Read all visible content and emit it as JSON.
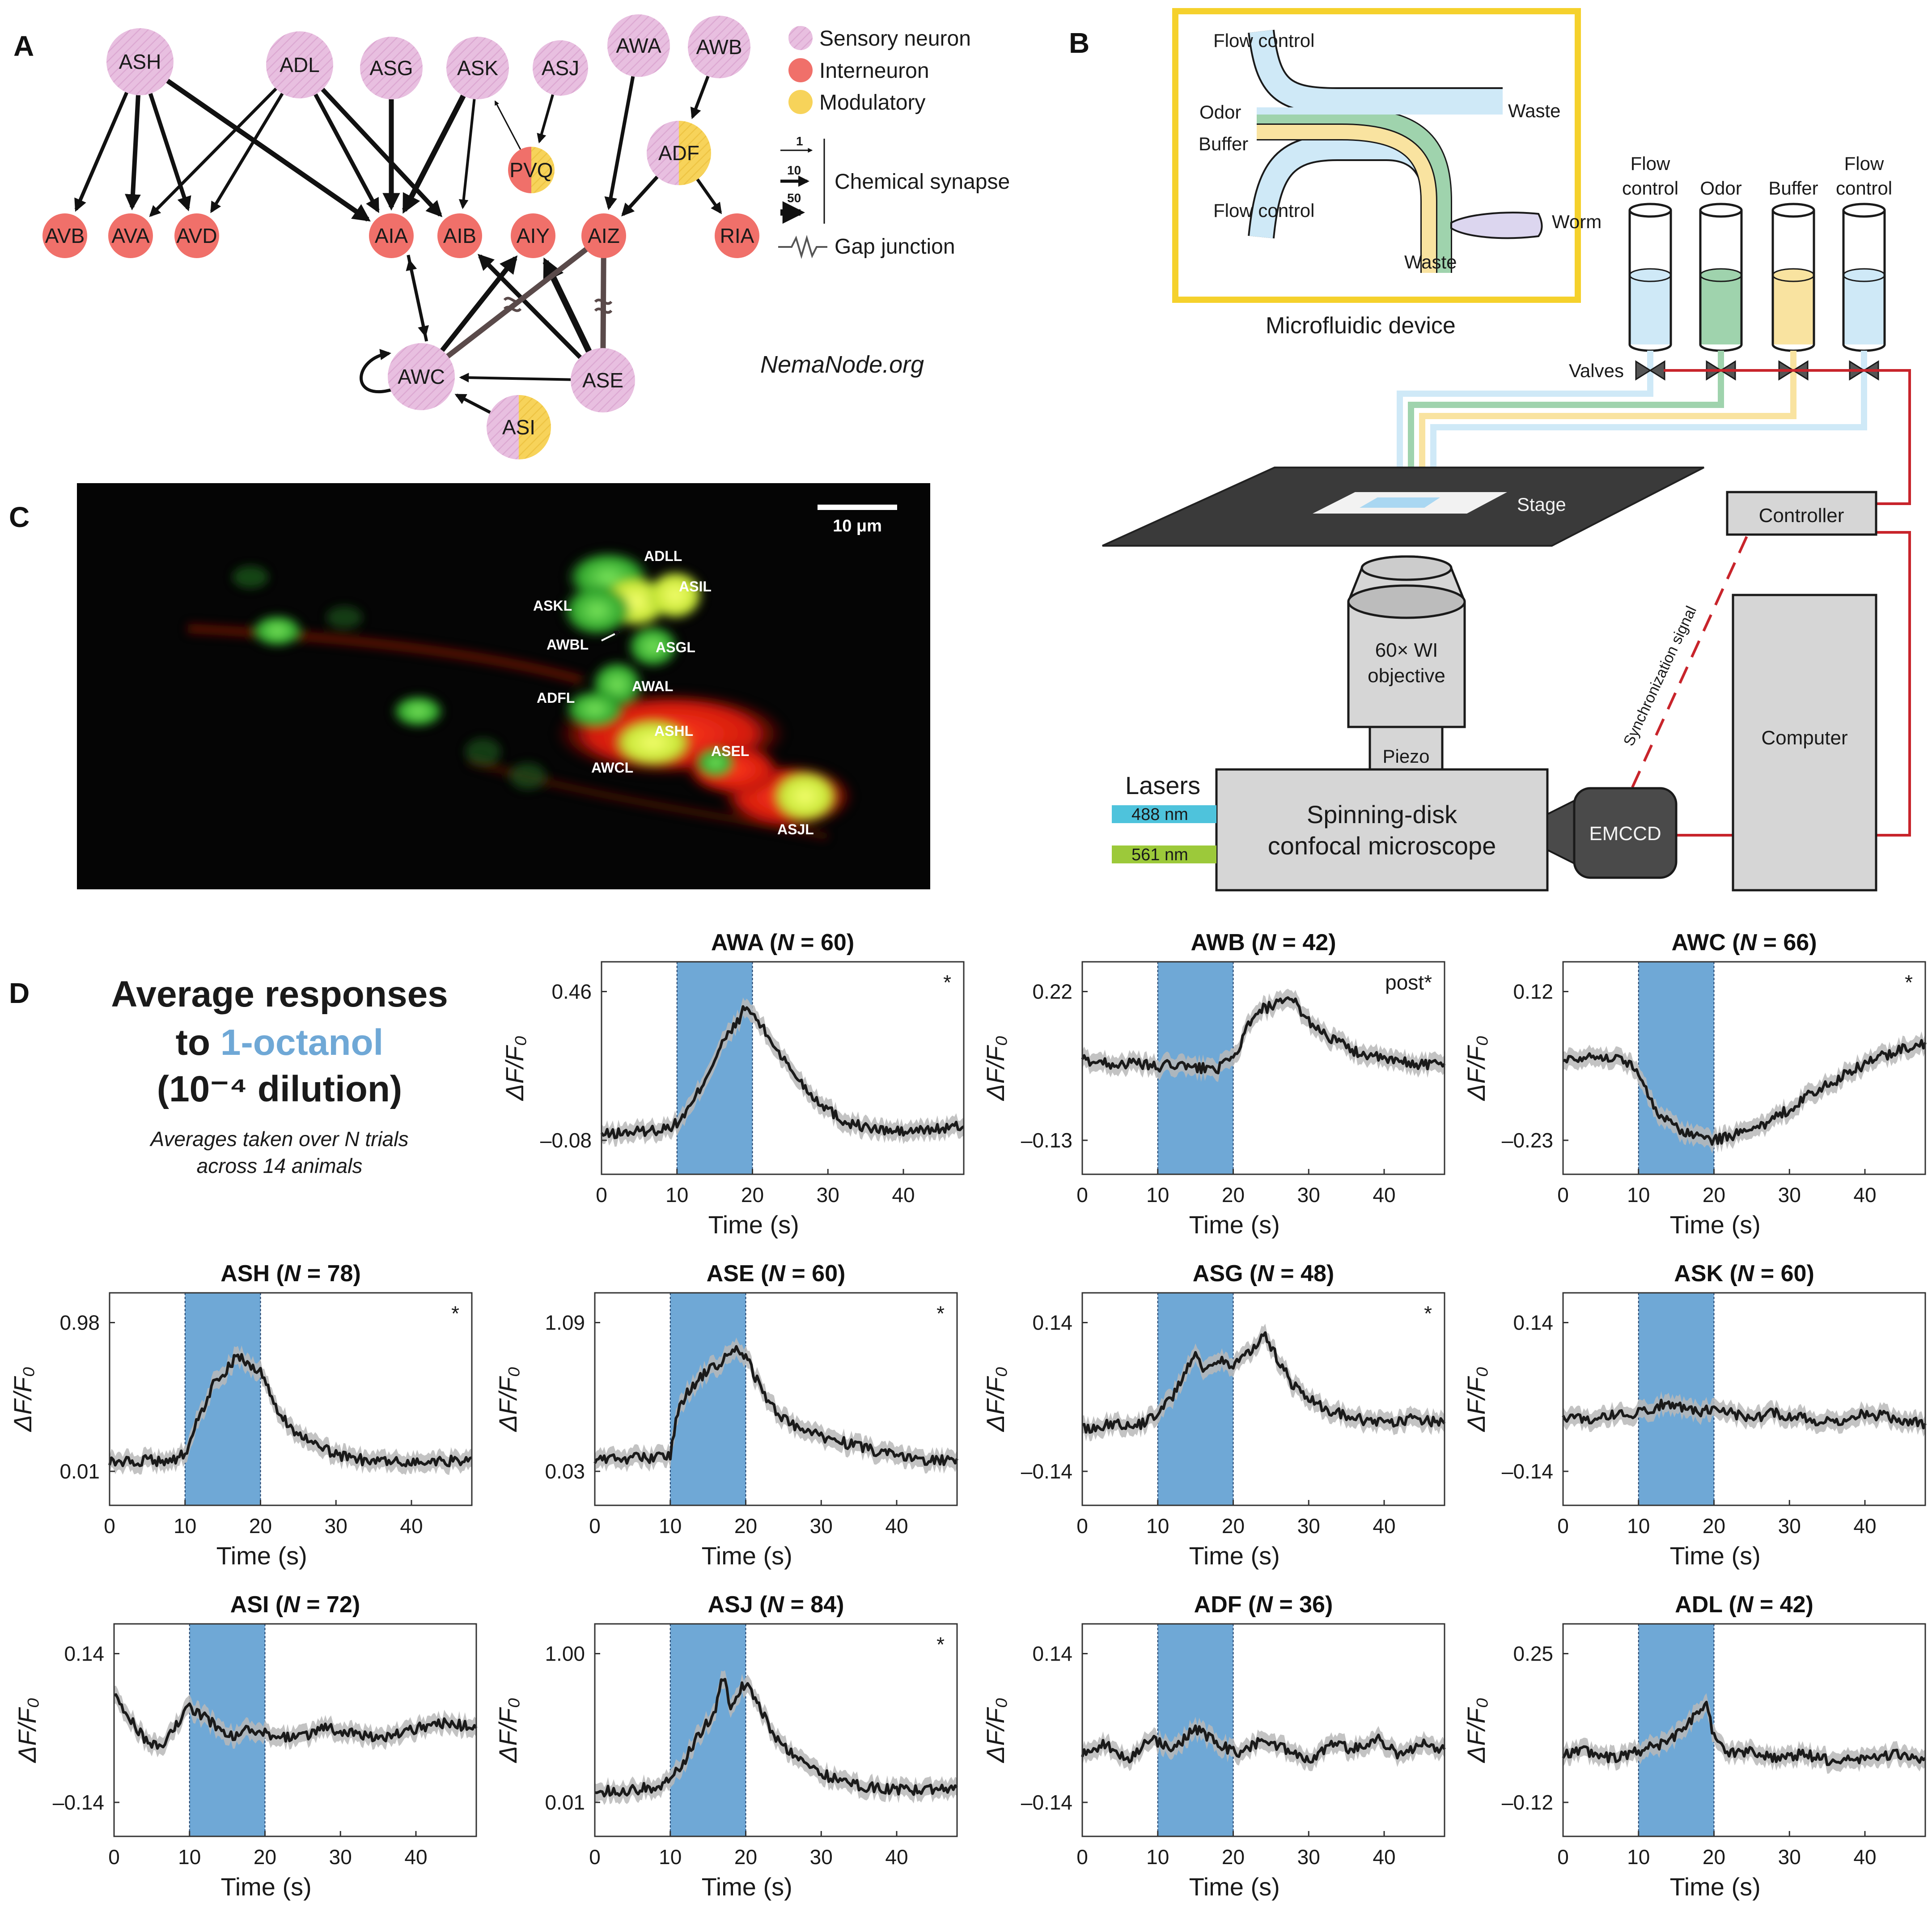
{
  "panelA": {
    "label": "A",
    "nodes": [
      {
        "id": "ASH",
        "label": "ASH",
        "type": "sensory"
      },
      {
        "id": "ADL",
        "label": "ADL",
        "type": "sensory"
      },
      {
        "id": "ASG",
        "label": "ASG",
        "type": "sensory"
      },
      {
        "id": "ASK",
        "label": "ASK",
        "type": "sensory"
      },
      {
        "id": "ASJ",
        "label": "ASJ",
        "type": "sensory"
      },
      {
        "id": "AWA",
        "label": "AWA",
        "type": "sensory"
      },
      {
        "id": "AWB",
        "label": "AWB",
        "type": "sensory"
      },
      {
        "id": "PVQ",
        "label": "PVQ",
        "type": "inter-modulatory"
      },
      {
        "id": "ADF",
        "label": "ADF",
        "type": "sensory-modulatory"
      },
      {
        "id": "AVB",
        "label": "AVB",
        "type": "inter"
      },
      {
        "id": "AVA",
        "label": "AVA",
        "type": "inter"
      },
      {
        "id": "AVD",
        "label": "AVD",
        "type": "inter"
      },
      {
        "id": "AIA",
        "label": "AIA",
        "type": "inter"
      },
      {
        "id": "AIB",
        "label": "AIB",
        "type": "inter"
      },
      {
        "id": "AIY",
        "label": "AIY",
        "type": "inter"
      },
      {
        "id": "AIZ",
        "label": "AIZ",
        "type": "inter"
      },
      {
        "id": "RIA",
        "label": "RIA",
        "type": "inter"
      },
      {
        "id": "AWC",
        "label": "AWC",
        "type": "sensory"
      },
      {
        "id": "ASE",
        "label": "ASE",
        "type": "sensory"
      },
      {
        "id": "ASI",
        "label": "ASI",
        "type": "sensory-modulatory"
      }
    ],
    "legend": {
      "sensory": "Sensory neuron",
      "inter": "Interneuron",
      "modulatory": "Modulatory",
      "weights": [
        "1",
        "10",
        "50"
      ],
      "chemical": "Chemical synapse",
      "gap": "Gap junction"
    },
    "credit": "NemaNode.org",
    "colors": {
      "sensory": "#e8bfe0",
      "inter": "#f0706a",
      "modulatory": "#f7d35a"
    }
  },
  "panelB": {
    "label": "B",
    "device": {
      "title": "Microfluidic device",
      "flow_control_top": "Flow control",
      "odor": "Odor",
      "buffer": "Buffer",
      "flow_control_bottom": "Flow control",
      "waste_right": "Waste",
      "waste_bottom": "Waste",
      "worm": "Worm"
    },
    "reservoirs": [
      {
        "line1": "Flow",
        "line2": "control",
        "color": "#cfe9f7"
      },
      {
        "line1": "",
        "line2": "Odor",
        "color": "#9fd3ad"
      },
      {
        "line1": "",
        "line2": "Buffer",
        "color": "#f9e3a0"
      },
      {
        "line1": "Flow",
        "line2": "control",
        "color": "#cfe9f7"
      }
    ],
    "valves": "Valves",
    "stage": "Stage",
    "controller": "Controller",
    "computer": "Computer",
    "objective_line1": "60× WI",
    "objective_line2": "objective",
    "piezo": "Piezo",
    "lasers": "Lasers",
    "laser1": "488 nm",
    "laser2": "561 nm",
    "microscope_line1": "Spinning-disk",
    "microscope_line2": "confocal microscope",
    "camera": "EMCCD",
    "sync": "Synchronization signal"
  },
  "panelC": {
    "label": "C",
    "scalebar": "10 μm",
    "neuron_labels": [
      "ADLL",
      "ASIL",
      "ASKL",
      "AWBL",
      "ASGL",
      "AWAL",
      "ADFL",
      "ASHL",
      "ASEL",
      "AWCL",
      "ASJL"
    ]
  },
  "panelD": {
    "label": "D",
    "heading_line1": "Average responses",
    "heading_line2_prefix": "to ",
    "heading_line2_odor": "1-octanol",
    "heading_line3": "(10⁻⁴ dilution)",
    "note_line1": "Averages taken over N trials",
    "note_line2": "across 14 animals",
    "odor_color": "#6fa8d6"
  },
  "chart_data": [
    {
      "type": "line",
      "neuron": "AWA",
      "n": "60",
      "title_n_prefix": "N",
      "title_n_eq": " = ",
      "yticks": [
        "0.46",
        "–0.08"
      ],
      "ylim": [
        -0.08,
        0.46
      ],
      "xticks": [
        "0",
        "10",
        "20",
        "30",
        "40"
      ],
      "xlim": [
        0,
        48
      ],
      "xlabel": "Time (s)",
      "ylabel": "ΔF/F₀",
      "stim": [
        10,
        20
      ],
      "mark": "*",
      "x": [
        0,
        4,
        8,
        10,
        12,
        14,
        16,
        18,
        19,
        20,
        22,
        25,
        28,
        32,
        36,
        40,
        44,
        48
      ],
      "y": [
        -0.06,
        -0.05,
        -0.04,
        -0.02,
        0.05,
        0.16,
        0.27,
        0.35,
        0.4,
        0.38,
        0.3,
        0.18,
        0.08,
        -0.01,
        -0.04,
        -0.05,
        -0.04,
        -0.03
      ]
    },
    {
      "type": "line",
      "neuron": "AWB",
      "n": "42",
      "title_n_prefix": "N",
      "title_n_eq": " = ",
      "yticks": [
        "0.22",
        "–0.13"
      ],
      "ylim": [
        -0.13,
        0.22
      ],
      "xticks": [
        "0",
        "10",
        "20",
        "30",
        "40"
      ],
      "xlim": [
        0,
        48
      ],
      "xlabel": "Time (s)",
      "ylabel": "ΔF/F₀",
      "stim": [
        10,
        20
      ],
      "mark": "post*",
      "x": [
        0,
        4,
        8,
        10,
        12,
        14,
        16,
        18,
        20,
        22,
        24,
        26,
        28,
        30,
        33,
        36,
        40,
        44,
        48
      ],
      "y": [
        0.06,
        0.05,
        0.05,
        0.04,
        0.05,
        0.04,
        0.04,
        0.04,
        0.06,
        0.14,
        0.18,
        0.19,
        0.2,
        0.15,
        0.11,
        0.08,
        0.06,
        0.05,
        0.05
      ]
    },
    {
      "type": "line",
      "neuron": "AWC",
      "n": "66",
      "title_n_prefix": "N",
      "title_n_eq": " = ",
      "yticks": [
        "0.12",
        "–0.23"
      ],
      "ylim": [
        -0.23,
        0.12
      ],
      "xticks": [
        "0",
        "10",
        "20",
        "30",
        "40"
      ],
      "xlim": [
        0,
        48
      ],
      "xlabel": "Time (s)",
      "ylabel": "ΔF/F₀",
      "stim": [
        10,
        20
      ],
      "mark": "*",
      "x": [
        0,
        4,
        8,
        10,
        12,
        14,
        16,
        18,
        20,
        22,
        25,
        28,
        32,
        36,
        40,
        44,
        48
      ],
      "y": [
        -0.04,
        -0.03,
        -0.04,
        -0.07,
        -0.15,
        -0.19,
        -0.21,
        -0.22,
        -0.23,
        -0.22,
        -0.21,
        -0.18,
        -0.13,
        -0.09,
        -0.05,
        -0.02,
        0.0
      ]
    },
    {
      "type": "line",
      "neuron": "ASH",
      "n": "78",
      "title_n_prefix": "N",
      "title_n_eq": " = ",
      "yticks": [
        "0.98",
        "0.01"
      ],
      "ylim": [
        0.01,
        0.98
      ],
      "xticks": [
        "0",
        "10",
        "20",
        "30",
        "40"
      ],
      "xlim": [
        0,
        48
      ],
      "xlabel": "Time (s)",
      "ylabel": "ΔF/F₀",
      "stim": [
        10,
        20
      ],
      "mark": "*",
      "x": [
        0,
        4,
        8,
        10,
        12,
        14,
        16,
        17,
        18,
        20,
        22,
        24,
        27,
        30,
        34,
        38,
        42,
        46,
        48
      ],
      "y": [
        0.07,
        0.08,
        0.08,
        0.12,
        0.38,
        0.6,
        0.7,
        0.78,
        0.72,
        0.66,
        0.42,
        0.3,
        0.18,
        0.12,
        0.08,
        0.07,
        0.07,
        0.08,
        0.1
      ]
    },
    {
      "type": "line",
      "neuron": "ASE",
      "n": "60",
      "title_n_prefix": "N",
      "title_n_eq": " = ",
      "yticks": [
        "1.09",
        "0.03"
      ],
      "ylim": [
        0.03,
        1.09
      ],
      "xticks": [
        "0",
        "10",
        "20",
        "30",
        "40"
      ],
      "xlim": [
        0,
        48
      ],
      "xlabel": "Time (s)",
      "ylabel": "ΔF/F₀",
      "stim": [
        10,
        20
      ],
      "mark": "*",
      "x": [
        0,
        4,
        8,
        10,
        11,
        12,
        14,
        16,
        18,
        19,
        20,
        22,
        24,
        27,
        30,
        34,
        38,
        42,
        46,
        48
      ],
      "y": [
        0.12,
        0.12,
        0.13,
        0.14,
        0.45,
        0.58,
        0.7,
        0.78,
        0.86,
        0.9,
        0.85,
        0.62,
        0.45,
        0.34,
        0.28,
        0.22,
        0.16,
        0.12,
        0.11,
        0.12
      ]
    },
    {
      "type": "line",
      "neuron": "ASG",
      "n": "48",
      "title_n_prefix": "N",
      "title_n_eq": " = ",
      "yticks": [
        "0.14",
        "–0.14"
      ],
      "ylim": [
        -0.14,
        0.14
      ],
      "xticks": [
        "0",
        "10",
        "20",
        "30",
        "40"
      ],
      "xlim": [
        0,
        48
      ],
      "xlabel": "Time (s)",
      "ylabel": "ΔF/F₀",
      "stim": [
        10,
        20
      ],
      "mark": "*",
      "x": [
        0,
        4,
        8,
        10,
        12,
        14,
        15,
        16,
        18,
        20,
        22,
        24,
        26,
        28,
        32,
        36,
        40,
        44,
        48
      ],
      "y": [
        -0.06,
        -0.05,
        -0.05,
        -0.03,
        0.0,
        0.06,
        0.08,
        0.05,
        0.07,
        0.06,
        0.08,
        0.12,
        0.07,
        0.02,
        -0.02,
        -0.04,
        -0.05,
        -0.04,
        -0.05
      ]
    },
    {
      "type": "line",
      "neuron": "ASK",
      "n": "60",
      "title_n_prefix": "N",
      "title_n_eq": " = ",
      "yticks": [
        "0.14",
        "–0.14"
      ],
      "ylim": [
        -0.14,
        0.14
      ],
      "xticks": [
        "0",
        "10",
        "20",
        "30",
        "40"
      ],
      "xlim": [
        0,
        48
      ],
      "xlabel": "Time (s)",
      "ylabel": "ΔF/F₀",
      "stim": [
        10,
        20
      ],
      "mark": "",
      "x": [
        0,
        4,
        8,
        10,
        12,
        14,
        16,
        18,
        20,
        22,
        25,
        28,
        32,
        36,
        40,
        44,
        48
      ],
      "y": [
        -0.04,
        -0.04,
        -0.03,
        -0.03,
        -0.02,
        -0.01,
        -0.02,
        -0.03,
        -0.02,
        -0.03,
        -0.04,
        -0.03,
        -0.04,
        -0.05,
        -0.03,
        -0.04,
        -0.05
      ]
    },
    {
      "type": "line",
      "neuron": "ASI",
      "n": "72",
      "title_n_prefix": "N",
      "title_n_eq": " = ",
      "yticks": [
        "0.14",
        "–0.14"
      ],
      "ylim": [
        -0.14,
        0.14
      ],
      "xticks": [
        "0",
        "10",
        "20",
        "30",
        "40"
      ],
      "xlim": [
        0,
        48
      ],
      "xlabel": "Time (s)",
      "ylabel": "ΔF/F₀",
      "stim": [
        10,
        20
      ],
      "mark": "",
      "x": [
        0,
        2,
        4,
        6,
        8,
        10,
        12,
        14,
        16,
        18,
        20,
        24,
        28,
        32,
        36,
        40,
        44,
        48
      ],
      "y": [
        0.06,
        0.02,
        -0.02,
        -0.04,
        0.0,
        0.04,
        0.02,
        0.0,
        -0.02,
        0.0,
        -0.01,
        -0.02,
        0.0,
        -0.01,
        -0.02,
        0.0,
        0.01,
        0.0
      ]
    },
    {
      "type": "line",
      "neuron": "ASJ",
      "n": "84",
      "title_n_prefix": "N",
      "title_n_eq": " = ",
      "yticks": [
        "1.00",
        "0.01"
      ],
      "ylim": [
        0.01,
        1.0
      ],
      "xticks": [
        "0",
        "10",
        "20",
        "30",
        "40"
      ],
      "xlim": [
        0,
        48
      ],
      "xlabel": "Time (s)",
      "ylabel": "ΔF/F₀",
      "stim": [
        10,
        20
      ],
      "mark": "*",
      "x": [
        0,
        4,
        8,
        10,
        12,
        14,
        16,
        17,
        18,
        19,
        20,
        22,
        24,
        27,
        30,
        34,
        38,
        42,
        46,
        48
      ],
      "y": [
        0.08,
        0.09,
        0.11,
        0.15,
        0.3,
        0.48,
        0.62,
        0.85,
        0.66,
        0.75,
        0.8,
        0.62,
        0.44,
        0.3,
        0.2,
        0.13,
        0.1,
        0.09,
        0.1,
        0.11
      ]
    },
    {
      "type": "line",
      "neuron": "ADF",
      "n": "36",
      "title_n_prefix": "N",
      "title_n_eq": " = ",
      "yticks": [
        "0.14",
        "–0.14"
      ],
      "ylim": [
        -0.14,
        0.14
      ],
      "xticks": [
        "0",
        "10",
        "20",
        "30",
        "40"
      ],
      "xlim": [
        0,
        48
      ],
      "xlabel": "Time (s)",
      "ylabel": "ΔF/F₀",
      "stim": [
        10,
        20
      ],
      "mark": "",
      "x": [
        0,
        3,
        6,
        9,
        12,
        15,
        18,
        21,
        24,
        27,
        30,
        33,
        36,
        39,
        42,
        45,
        48
      ],
      "y": [
        -0.05,
        -0.03,
        -0.06,
        -0.02,
        -0.04,
        0.0,
        -0.03,
        -0.05,
        -0.02,
        -0.04,
        -0.06,
        -0.03,
        -0.04,
        -0.02,
        -0.05,
        -0.03,
        -0.04
      ]
    },
    {
      "type": "line",
      "neuron": "ADL",
      "n": "42",
      "title_n_prefix": "N",
      "title_n_eq": " = ",
      "yticks": [
        "0.25",
        "–0.12"
      ],
      "ylim": [
        -0.12,
        0.25
      ],
      "xticks": [
        "0",
        "10",
        "20",
        "30",
        "40"
      ],
      "xlim": [
        0,
        48
      ],
      "xlabel": "Time (s)",
      "ylabel": "ΔF/F₀",
      "stim": [
        10,
        20
      ],
      "mark": "",
      "x": [
        0,
        3,
        6,
        9,
        12,
        14,
        16,
        18,
        19,
        20,
        22,
        25,
        28,
        32,
        36,
        40,
        44,
        48
      ],
      "y": [
        0.0,
        0.01,
        -0.01,
        0.0,
        0.02,
        0.03,
        0.06,
        0.11,
        0.12,
        0.04,
        0.0,
        0.01,
        -0.01,
        0.0,
        -0.02,
        -0.01,
        0.0,
        -0.01
      ]
    }
  ]
}
